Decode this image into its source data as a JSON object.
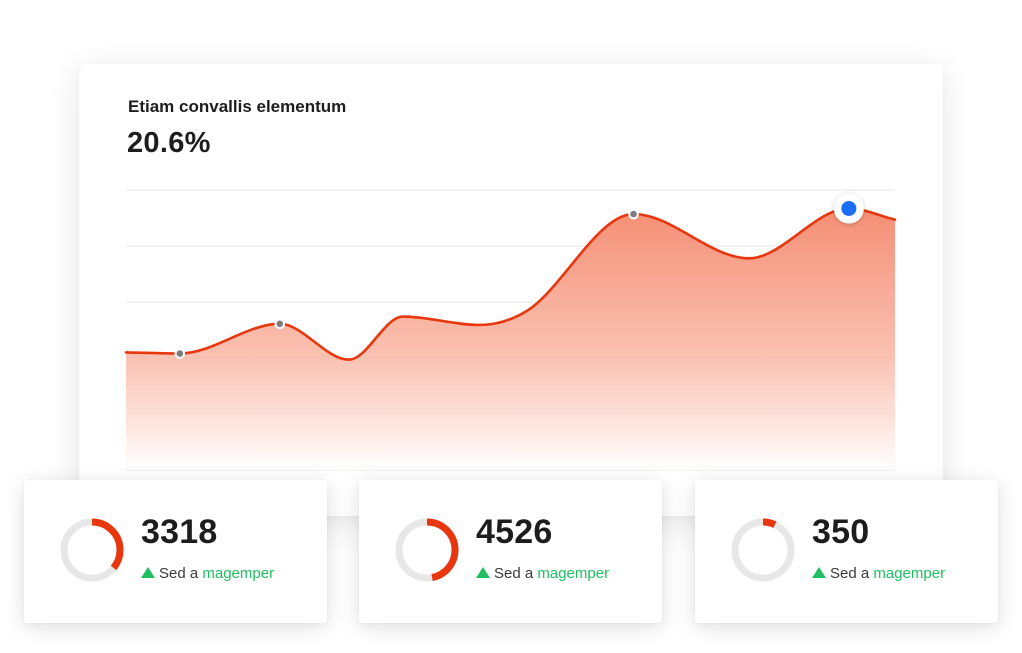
{
  "main_card": {
    "title": "Etiam convallis elementum",
    "value": "20.6%"
  },
  "chart_data": {
    "type": "area",
    "title": "Etiam convallis elementum",
    "xlabel": "",
    "ylabel": "",
    "ylim": [
      0,
      5
    ],
    "grid": true,
    "legend": "none",
    "x": [
      0,
      0.07,
      0.2,
      0.29,
      0.36,
      0.46,
      0.52,
      0.66,
      0.81,
      0.94,
      1.0
    ],
    "series": [
      {
        "values": [
          2.1,
          2.08,
          2.61,
          1.97,
          2.74,
          2.59,
          2.83,
          4.57,
          3.78,
          4.67,
          4.47
        ],
        "markers": [
          1,
          2,
          7
        ],
        "highlight": 9
      }
    ],
    "line_color": "#e8360e",
    "fill_color": "#f58e74",
    "highlight_color": "#1a6ef5"
  },
  "stats": [
    {
      "number": "3318",
      "text": "Sed a",
      "link": "magemper",
      "fraction": 0.36
    },
    {
      "number": "4526",
      "text": "Sed a",
      "link": "magemper",
      "fraction": 0.47
    },
    {
      "number": "350",
      "text": "Sed a",
      "link": "magemper",
      "fraction": 0.07
    }
  ],
  "colors": {
    "accent": "#e8360e",
    "positive": "#1fbf61",
    "ring_track": "#e7e7e7"
  },
  "icons": {
    "trend": "triangle-up-icon"
  }
}
